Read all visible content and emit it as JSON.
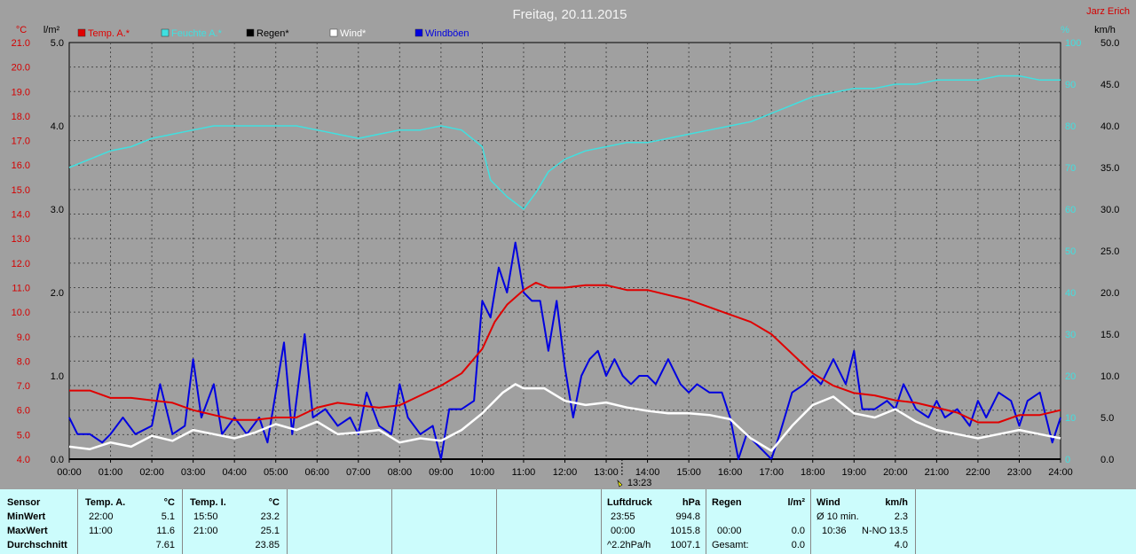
{
  "title": "Freitag, 20.11.2015",
  "author": "Jarz Erich",
  "unit_labels": {
    "celsius": "°C",
    "rain": "l/m²",
    "humidity": "%",
    "kmh": "km/h"
  },
  "legend": [
    {
      "label": "Temp. A.*",
      "color": "#e00000"
    },
    {
      "label": "Feuchte A.*",
      "color": "#40e0e0"
    },
    {
      "label": "Regen*",
      "color": "#000000"
    },
    {
      "label": "Wind*",
      "color": "#ffffff"
    },
    {
      "label": "Windböen",
      "color": "#0000e0"
    }
  ],
  "marker_label": "13:23",
  "chart_data": {
    "type": "line",
    "title": "Freitag, 20.11.2015",
    "x_ticks": [
      "00:00",
      "01:00",
      "02:00",
      "03:00",
      "04:00",
      "05:00",
      "06:00",
      "07:00",
      "08:00",
      "09:00",
      "10:00",
      "11:00",
      "12:00",
      "13:00",
      "14:00",
      "15:00",
      "16:00",
      "17:00",
      "18:00",
      "19:00",
      "20:00",
      "21:00",
      "22:00",
      "23:00",
      "24:00"
    ],
    "x_range_hours": [
      0,
      24
    ],
    "axes": {
      "temp_celsius": {
        "range": [
          4.0,
          21.0
        ],
        "ticks": [
          "21.0",
          "20.0",
          "19.0",
          "18.0",
          "17.0",
          "16.0",
          "15.0",
          "14.0",
          "13.0",
          "12.0",
          "11.0",
          "10.0",
          "9.0",
          "8.0",
          "7.0",
          "6.0",
          "5.0",
          "4.0"
        ]
      },
      "rain_l_m2": {
        "range": [
          0.0,
          5.0
        ],
        "ticks": [
          "5.0",
          "4.0",
          "3.0",
          "2.0",
          "1.0",
          "0.0"
        ]
      },
      "humidity_pct": {
        "range": [
          0,
          100
        ],
        "ticks": [
          "100",
          "90",
          "80",
          "70",
          "60",
          "50",
          "40",
          "30",
          "20",
          "10",
          "0"
        ]
      },
      "wind_kmh": {
        "range": [
          0.0,
          50.0
        ],
        "ticks": [
          "50.0",
          "45.0",
          "40.0",
          "35.0",
          "30.0",
          "25.0",
          "20.0",
          "15.0",
          "10.0",
          "5.0",
          "0.0"
        ]
      }
    },
    "grid": true,
    "series": [
      {
        "name": "Temp. A.*",
        "axis": "temp_celsius",
        "color": "#e00000",
        "points": [
          [
            0,
            6.8
          ],
          [
            0.5,
            6.8
          ],
          [
            1,
            6.5
          ],
          [
            1.5,
            6.5
          ],
          [
            2,
            6.4
          ],
          [
            2.5,
            6.3
          ],
          [
            3,
            6.0
          ],
          [
            3.5,
            5.8
          ],
          [
            4,
            5.6
          ],
          [
            4.5,
            5.6
          ],
          [
            5,
            5.7
          ],
          [
            5.5,
            5.7
          ],
          [
            6,
            6.1
          ],
          [
            6.5,
            6.3
          ],
          [
            7,
            6.2
          ],
          [
            7.5,
            6.1
          ],
          [
            8,
            6.2
          ],
          [
            8.5,
            6.6
          ],
          [
            9,
            7.0
          ],
          [
            9.5,
            7.5
          ],
          [
            10,
            8.5
          ],
          [
            10.3,
            9.6
          ],
          [
            10.6,
            10.3
          ],
          [
            11,
            10.9
          ],
          [
            11.3,
            11.2
          ],
          [
            11.6,
            11.0
          ],
          [
            12,
            11.0
          ],
          [
            12.5,
            11.1
          ],
          [
            13,
            11.1
          ],
          [
            13.5,
            10.9
          ],
          [
            14,
            10.9
          ],
          [
            14.5,
            10.7
          ],
          [
            15,
            10.5
          ],
          [
            15.5,
            10.2
          ],
          [
            16,
            9.9
          ],
          [
            16.5,
            9.6
          ],
          [
            17,
            9.1
          ],
          [
            17.5,
            8.3
          ],
          [
            18,
            7.5
          ],
          [
            18.5,
            7.0
          ],
          [
            19,
            6.7
          ],
          [
            19.5,
            6.6
          ],
          [
            20,
            6.4
          ],
          [
            20.5,
            6.3
          ],
          [
            21,
            6.1
          ],
          [
            21.5,
            5.9
          ],
          [
            22,
            5.5
          ],
          [
            22.5,
            5.5
          ],
          [
            23,
            5.8
          ],
          [
            23.5,
            5.8
          ],
          [
            24,
            6.0
          ]
        ]
      },
      {
        "name": "Feuchte A.*",
        "axis": "humidity_pct",
        "color": "#40e0e0",
        "points": [
          [
            0,
            70
          ],
          [
            0.5,
            72
          ],
          [
            1,
            74
          ],
          [
            1.5,
            75
          ],
          [
            2,
            77
          ],
          [
            2.5,
            78
          ],
          [
            3,
            79
          ],
          [
            3.5,
            80
          ],
          [
            4,
            80
          ],
          [
            4.5,
            80
          ],
          [
            5,
            80
          ],
          [
            5.5,
            80
          ],
          [
            6,
            79
          ],
          [
            6.5,
            78
          ],
          [
            7,
            77
          ],
          [
            7.5,
            78
          ],
          [
            8,
            79
          ],
          [
            8.5,
            79
          ],
          [
            9,
            80
          ],
          [
            9.5,
            79
          ],
          [
            10,
            75
          ],
          [
            10.2,
            67
          ],
          [
            10.6,
            63
          ],
          [
            11,
            60
          ],
          [
            11.3,
            64
          ],
          [
            11.6,
            69
          ],
          [
            12,
            72
          ],
          [
            12.5,
            74
          ],
          [
            13,
            75
          ],
          [
            13.5,
            76
          ],
          [
            14,
            76
          ],
          [
            14.5,
            77
          ],
          [
            15,
            78
          ],
          [
            15.5,
            79
          ],
          [
            16,
            80
          ],
          [
            16.5,
            81
          ],
          [
            17,
            83
          ],
          [
            17.5,
            85
          ],
          [
            18,
            87
          ],
          [
            18.5,
            88
          ],
          [
            19,
            89
          ],
          [
            19.5,
            89
          ],
          [
            20,
            90
          ],
          [
            20.5,
            90
          ],
          [
            21,
            91
          ],
          [
            21.5,
            91
          ],
          [
            22,
            91
          ],
          [
            22.5,
            92
          ],
          [
            23,
            92
          ],
          [
            23.5,
            91
          ],
          [
            24,
            91
          ]
        ]
      },
      {
        "name": "Regen*",
        "axis": "rain_l_m2",
        "color": "#000000",
        "points": [
          [
            0,
            0.0
          ],
          [
            24,
            0.0
          ]
        ]
      },
      {
        "name": "Wind*",
        "axis": "wind_kmh",
        "color": "#ffffff",
        "points": [
          [
            0,
            1.5
          ],
          [
            0.5,
            1.2
          ],
          [
            1,
            2.0
          ],
          [
            1.5,
            1.5
          ],
          [
            2,
            2.8
          ],
          [
            2.5,
            2.2
          ],
          [
            3,
            3.5
          ],
          [
            3.5,
            3.0
          ],
          [
            4,
            2.5
          ],
          [
            4.5,
            3.2
          ],
          [
            5,
            4.2
          ],
          [
            5.5,
            3.5
          ],
          [
            6,
            4.5
          ],
          [
            6.5,
            3.0
          ],
          [
            7,
            3.2
          ],
          [
            7.5,
            3.5
          ],
          [
            8,
            2.0
          ],
          [
            8.5,
            2.5
          ],
          [
            9,
            2.2
          ],
          [
            9.5,
            3.5
          ],
          [
            10,
            5.5
          ],
          [
            10.5,
            8.0
          ],
          [
            10.8,
            9.0
          ],
          [
            11,
            8.5
          ],
          [
            11.5,
            8.5
          ],
          [
            12,
            7.0
          ],
          [
            12.5,
            6.5
          ],
          [
            13,
            6.8
          ],
          [
            13.5,
            6.2
          ],
          [
            14,
            5.8
          ],
          [
            14.5,
            5.5
          ],
          [
            15,
            5.5
          ],
          [
            15.5,
            5.3
          ],
          [
            16,
            4.8
          ],
          [
            16.5,
            2.5
          ],
          [
            17,
            1.0
          ],
          [
            17.5,
            4.0
          ],
          [
            18,
            6.5
          ],
          [
            18.5,
            7.5
          ],
          [
            19,
            5.5
          ],
          [
            19.5,
            5.0
          ],
          [
            20,
            6.0
          ],
          [
            20.5,
            4.5
          ],
          [
            21,
            3.5
          ],
          [
            21.5,
            3.0
          ],
          [
            22,
            2.5
          ],
          [
            22.5,
            3.0
          ],
          [
            23,
            3.5
          ],
          [
            23.5,
            3.0
          ],
          [
            24,
            2.5
          ]
        ]
      },
      {
        "name": "Windböen",
        "axis": "wind_kmh",
        "color": "#0000e0",
        "points": [
          [
            0,
            5
          ],
          [
            0.2,
            3
          ],
          [
            0.5,
            3
          ],
          [
            0.8,
            2
          ],
          [
            1,
            3
          ],
          [
            1.3,
            5
          ],
          [
            1.6,
            3
          ],
          [
            2,
            4
          ],
          [
            2.2,
            9
          ],
          [
            2.5,
            3
          ],
          [
            2.8,
            4
          ],
          [
            3,
            12
          ],
          [
            3.2,
            5
          ],
          [
            3.5,
            9
          ],
          [
            3.7,
            3
          ],
          [
            4,
            5
          ],
          [
            4.3,
            3
          ],
          [
            4.6,
            5
          ],
          [
            4.8,
            2
          ],
          [
            5,
            8
          ],
          [
            5.2,
            14
          ],
          [
            5.4,
            3
          ],
          [
            5.7,
            15
          ],
          [
            5.9,
            5
          ],
          [
            6.2,
            6
          ],
          [
            6.5,
            4
          ],
          [
            6.8,
            5
          ],
          [
            7,
            3
          ],
          [
            7.2,
            8
          ],
          [
            7.5,
            4
          ],
          [
            7.8,
            3
          ],
          [
            8,
            9
          ],
          [
            8.2,
            5
          ],
          [
            8.5,
            3
          ],
          [
            8.8,
            4
          ],
          [
            9,
            0
          ],
          [
            9.2,
            6
          ],
          [
            9.5,
            6
          ],
          [
            9.8,
            7
          ],
          [
            10,
            19
          ],
          [
            10.2,
            17
          ],
          [
            10.4,
            23
          ],
          [
            10.6,
            20
          ],
          [
            10.8,
            26
          ],
          [
            11,
            20
          ],
          [
            11.2,
            19
          ],
          [
            11.4,
            19
          ],
          [
            11.6,
            13
          ],
          [
            11.8,
            19
          ],
          [
            12,
            11
          ],
          [
            12.2,
            5
          ],
          [
            12.4,
            10
          ],
          [
            12.6,
            12
          ],
          [
            12.8,
            13
          ],
          [
            13,
            10
          ],
          [
            13.2,
            12
          ],
          [
            13.4,
            10
          ],
          [
            13.6,
            9
          ],
          [
            13.8,
            10
          ],
          [
            14,
            10
          ],
          [
            14.2,
            9
          ],
          [
            14.5,
            12
          ],
          [
            14.8,
            9
          ],
          [
            15,
            8
          ],
          [
            15.2,
            9
          ],
          [
            15.5,
            8
          ],
          [
            15.8,
            8
          ],
          [
            16,
            5
          ],
          [
            16.2,
            0
          ],
          [
            16.4,
            3
          ],
          [
            16.6,
            2
          ],
          [
            16.8,
            1
          ],
          [
            17,
            0
          ],
          [
            17.2,
            3
          ],
          [
            17.5,
            8
          ],
          [
            17.8,
            9
          ],
          [
            18,
            10
          ],
          [
            18.2,
            9
          ],
          [
            18.5,
            12
          ],
          [
            18.8,
            9
          ],
          [
            19,
            13
          ],
          [
            19.2,
            6
          ],
          [
            19.5,
            6
          ],
          [
            19.8,
            7
          ],
          [
            20,
            6
          ],
          [
            20.2,
            9
          ],
          [
            20.5,
            6
          ],
          [
            20.8,
            5
          ],
          [
            21,
            7
          ],
          [
            21.2,
            5
          ],
          [
            21.5,
            6
          ],
          [
            21.8,
            4
          ],
          [
            22,
            7
          ],
          [
            22.2,
            5
          ],
          [
            22.5,
            8
          ],
          [
            22.8,
            7
          ],
          [
            23,
            4
          ],
          [
            23.2,
            7
          ],
          [
            23.5,
            8
          ],
          [
            23.8,
            2
          ],
          [
            24,
            5
          ]
        ]
      }
    ]
  },
  "table": {
    "sensor": {
      "header": "Sensor",
      "rows": [
        "MinWert",
        "MaxWert",
        "Durchschnitt"
      ]
    },
    "temp_a": {
      "header": "Temp. A.",
      "unit": "°C",
      "rows": [
        [
          "22:00",
          "5.1"
        ],
        [
          "11:00",
          "11.6"
        ],
        [
          "",
          "7.61"
        ]
      ]
    },
    "temp_i": {
      "header": "Temp. I.",
      "unit": "°C",
      "rows": [
        [
          "15:50",
          "23.2"
        ],
        [
          "21:00",
          "25.1"
        ],
        [
          "",
          "23.85"
        ]
      ]
    },
    "luftdruck": {
      "header": "Luftdruck",
      "unit": "hPa",
      "rows": [
        [
          "23:55",
          "994.8"
        ],
        [
          "00:00",
          "1015.8"
        ],
        [
          "^2.2hPa/h",
          "1007.1"
        ]
      ]
    },
    "regen": {
      "header": "Regen",
      "unit": "l/m²",
      "rows": [
        [
          "00:00",
          "0.0"
        ],
        [
          "Gesamt:",
          "0.0"
        ]
      ]
    },
    "wind": {
      "header": "Wind",
      "unit": "km/h",
      "rows": [
        [
          "Ø 10 min.",
          "",
          "2.3"
        ],
        [
          "10:36",
          "N-NO",
          "13.5"
        ],
        [
          "",
          "",
          "4.0"
        ]
      ]
    }
  }
}
